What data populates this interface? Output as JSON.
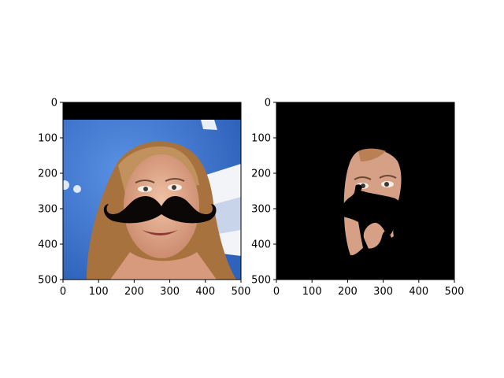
{
  "figure": {
    "panels": [
      {
        "id": "left",
        "description_type": "photo-with-mustache-overlay",
        "x_ticks": [
          "0",
          "100",
          "200",
          "300",
          "400",
          "500"
        ],
        "y_ticks": [
          "0",
          "100",
          "200",
          "300",
          "400",
          "500"
        ],
        "x_range": [
          0,
          500
        ],
        "y_range": [
          0,
          500
        ],
        "colors": {
          "background": "#3f77cf",
          "mask_band": "#000000",
          "mustache": "#0b0707",
          "hair": "#b7824f",
          "skin": "#d9a88a"
        }
      },
      {
        "id": "right",
        "description_type": "segmented-face-on-black",
        "x_ticks": [
          "0",
          "100",
          "200",
          "300",
          "400",
          "500"
        ],
        "y_ticks": [
          "0",
          "100",
          "200",
          "300",
          "400",
          "500"
        ],
        "x_range": [
          0,
          500
        ],
        "y_range": [
          0,
          500
        ],
        "colors": {
          "background": "#000000",
          "skin": "#d9a88a"
        }
      }
    ]
  }
}
